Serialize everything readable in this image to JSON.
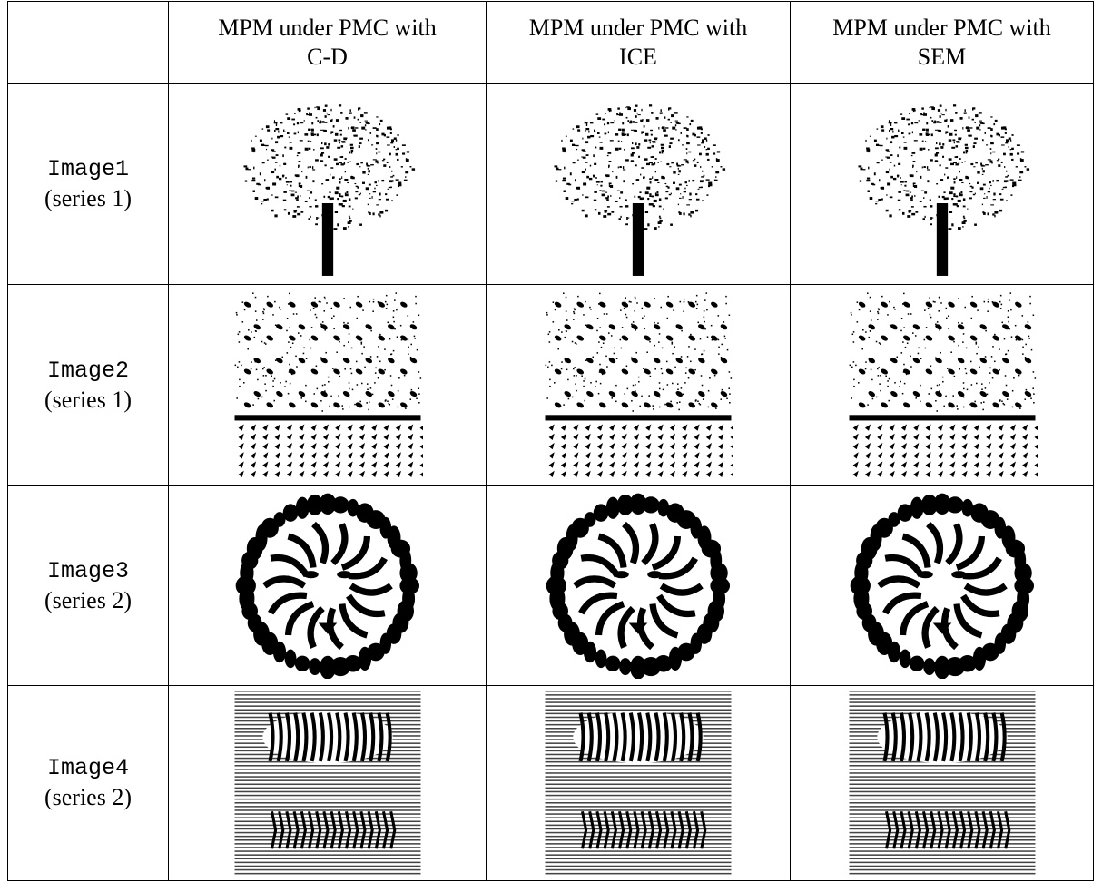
{
  "table": {
    "columns": [
      {
        "lines": [
          "MPM under PMC with",
          "C-D"
        ]
      },
      {
        "lines": [
          "MPM under PMC with",
          "ICE"
        ]
      },
      {
        "lines": [
          "MPM under PMC with",
          "SEM"
        ]
      }
    ],
    "rows": [
      {
        "name": "Image1",
        "series": "(series 1)"
      },
      {
        "name": "Image2",
        "series": "(series 1)"
      },
      {
        "name": "Image3",
        "series": "(series 2)"
      },
      {
        "name": "Image4",
        "series": "(series 2)"
      }
    ]
  }
}
